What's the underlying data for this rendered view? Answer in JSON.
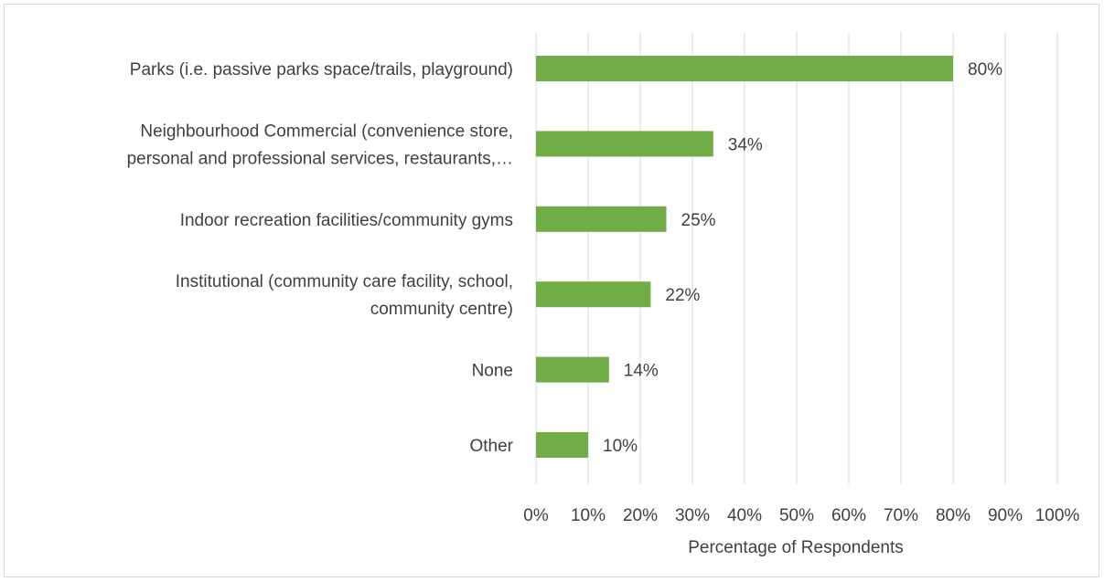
{
  "chart_data": {
    "type": "bar",
    "orientation": "horizontal",
    "categories": [
      [
        "Parks (i.e. passive parks space/trails, playground)"
      ],
      [
        "Neighbourhood Commercial (convenience store,",
        "personal and professional services, restaurants,…"
      ],
      [
        "Indoor recreation facilities/community gyms"
      ],
      [
        "Institutional (community care facility, school,",
        "community centre)"
      ],
      [
        "None"
      ],
      [
        "Other"
      ]
    ],
    "values": [
      80,
      34,
      25,
      22,
      14,
      10
    ],
    "data_labels": [
      "80%",
      "34%",
      "25%",
      "22%",
      "14%",
      "10%"
    ],
    "xticks": [
      0,
      10,
      20,
      30,
      40,
      50,
      60,
      70,
      80,
      90,
      100
    ],
    "xtick_labels": [
      "0%",
      "10%",
      "20%",
      "30%",
      "40%",
      "50%",
      "60%",
      "70%",
      "80%",
      "90%",
      "100%"
    ],
    "xlim": [
      0,
      100
    ],
    "xlabel": "Percentage of Respondents",
    "ylabel": "",
    "title": "",
    "grid": "vertical",
    "legend": "none",
    "bar_color": "#70ad47",
    "grid_color": "#d9d9d9",
    "text_color": "#404040"
  }
}
